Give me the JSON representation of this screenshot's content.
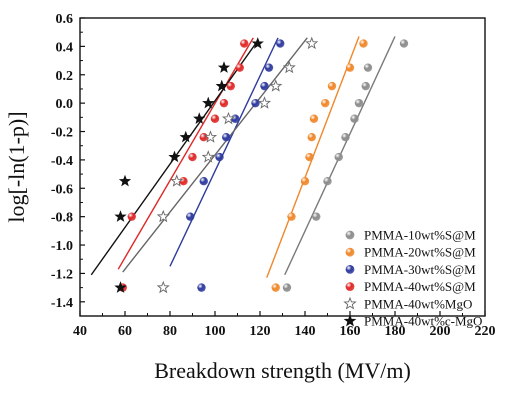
{
  "chart_data": {
    "type": "scatter",
    "xlabel": "Breakdown strength (MV/m)",
    "ylabel": "log[-ln(1-p)]",
    "xlim": [
      40,
      220
    ],
    "ylim": [
      -1.5,
      0.6
    ],
    "x_ticks": [
      40,
      60,
      80,
      100,
      120,
      140,
      160,
      180,
      200,
      220
    ],
    "y_ticks": [
      -1.4,
      -1.2,
      -1.0,
      -0.8,
      -0.6,
      -0.4,
      -0.2,
      0.0,
      0.2,
      0.4,
      0.6
    ],
    "x_tick_labels": [
      "40",
      "60",
      "80",
      "100",
      "120",
      "140",
      "160",
      "180",
      "200",
      "220"
    ],
    "y_tick_labels": [
      "-1.4",
      "-1.2",
      "-1.0",
      "-0.8",
      "-0.6",
      "-0.4",
      "-0.2",
      "0.0",
      "0.2",
      "0.4",
      "0.6"
    ],
    "grid": false,
    "legend_position": "bottom-right",
    "series": [
      {
        "name": "PMMA-10wt%S@M",
        "marker": "sphere",
        "color": "#8c8c8c",
        "points": [
          [
            132,
            -1.3
          ],
          [
            145,
            -0.8
          ],
          [
            150,
            -0.55
          ],
          [
            155,
            -0.38
          ],
          [
            158,
            -0.24
          ],
          [
            162,
            -0.11
          ],
          [
            164,
            0.0
          ],
          [
            167,
            0.12
          ],
          [
            168,
            0.25
          ],
          [
            184,
            0.42
          ]
        ],
        "fit": [
          [
            131,
            -1.21
          ],
          [
            180,
            0.47
          ]
        ]
      },
      {
        "name": "PMMA-20wt%S@M",
        "marker": "sphere",
        "color": "#f0872a",
        "points": [
          [
            127,
            -1.3
          ],
          [
            134,
            -0.8
          ],
          [
            140,
            -0.55
          ],
          [
            142,
            -0.38
          ],
          [
            143,
            -0.24
          ],
          [
            144,
            -0.11
          ],
          [
            149,
            0.0
          ],
          [
            152,
            0.12
          ],
          [
            160,
            0.25
          ],
          [
            166,
            0.42
          ]
        ],
        "fit": [
          [
            123,
            -1.23
          ],
          [
            164,
            0.47
          ]
        ]
      },
      {
        "name": "PMMA-30wt%S@M",
        "marker": "sphere",
        "color": "#2e3a9e",
        "points": [
          [
            94,
            -1.3
          ],
          [
            89,
            -0.8
          ],
          [
            95,
            -0.55
          ],
          [
            102,
            -0.38
          ],
          [
            105,
            -0.24
          ],
          [
            109,
            -0.11
          ],
          [
            118,
            0.0
          ],
          [
            122,
            0.12
          ],
          [
            124,
            0.25
          ],
          [
            129,
            0.42
          ]
        ],
        "fit": [
          [
            80,
            -1.15
          ],
          [
            128,
            0.46
          ]
        ]
      },
      {
        "name": "PMMA-40wt%S@M",
        "marker": "sphere",
        "color": "#e02828",
        "points": [
          [
            59,
            -1.3
          ],
          [
            63,
            -0.8
          ],
          [
            86,
            -0.55
          ],
          [
            90,
            -0.38
          ],
          [
            95,
            -0.24
          ],
          [
            100,
            -0.11
          ],
          [
            104,
            0.0
          ],
          [
            107,
            0.12
          ],
          [
            111,
            0.25
          ],
          [
            113,
            0.42
          ]
        ],
        "fit": [
          [
            57,
            -1.17
          ],
          [
            117,
            0.46
          ]
        ]
      },
      {
        "name": "PMMA-40wt%MgO",
        "marker": "open-star",
        "color": "#666666",
        "points": [
          [
            77,
            -1.3
          ],
          [
            77,
            -0.8
          ],
          [
            83,
            -0.55
          ],
          [
            97,
            -0.38
          ],
          [
            98,
            -0.24
          ],
          [
            106,
            -0.11
          ],
          [
            122,
            0.0
          ],
          [
            127,
            0.12
          ],
          [
            133,
            0.25
          ],
          [
            143,
            0.42
          ]
        ],
        "fit": [
          [
            59,
            -1.19
          ],
          [
            141,
            0.46
          ]
        ]
      },
      {
        "name": "PMMA-40wt%c-MgO",
        "marker": "filled-star",
        "color": "#111111",
        "points": [
          [
            58,
            -1.3
          ],
          [
            58,
            -0.8
          ],
          [
            60,
            -0.55
          ],
          [
            82,
            -0.38
          ],
          [
            87,
            -0.24
          ],
          [
            93,
            -0.11
          ],
          [
            97,
            0.0
          ],
          [
            103,
            0.12
          ],
          [
            104,
            0.25
          ],
          [
            119,
            0.42
          ]
        ],
        "fit": [
          [
            45,
            -1.21
          ],
          [
            119,
            0.44
          ]
        ]
      }
    ]
  }
}
